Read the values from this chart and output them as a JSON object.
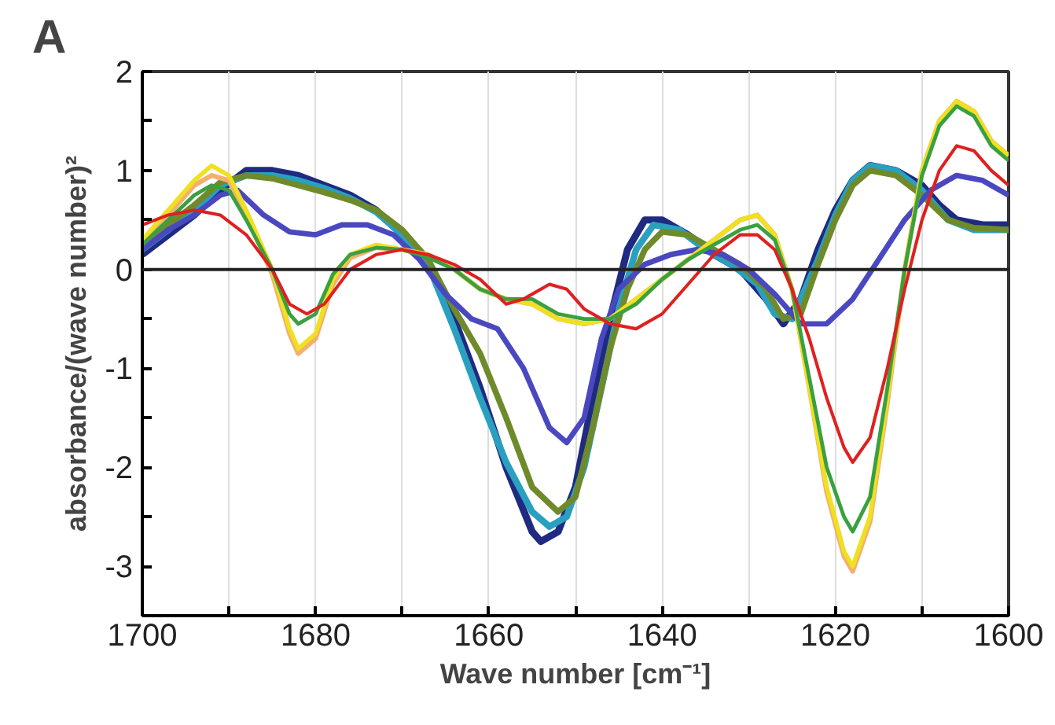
{
  "chart_data": {
    "type": "line",
    "title": "A",
    "xlabel": "Wave number [cm⁻¹]",
    "ylabel": "absorbance/(wave number)²",
    "xlim": [
      1700,
      1600
    ],
    "ylim": [
      -3.5,
      2
    ],
    "xticks": [
      1700,
      {
        "value": 1690,
        "label": null
      },
      1680,
      {
        "value": 1670,
        "label": null
      },
      1660,
      {
        "value": 1650,
        "label": null
      },
      1640,
      {
        "value": 1630,
        "label": null
      },
      1620,
      {
        "value": 1610,
        "label": null
      },
      1600
    ],
    "yticks": [
      {
        "value": -3.5,
        "label": null
      },
      -3,
      {
        "value": -2.5,
        "label": null
      },
      -2,
      {
        "value": -1.5,
        "label": null
      },
      -1,
      {
        "value": -0.5,
        "label": null
      },
      0,
      {
        "value": 0.5,
        "label": null
      },
      1,
      {
        "value": 1.5,
        "label": null
      },
      2
    ],
    "grid": "x",
    "marker": "none",
    "line_style": "solid",
    "ref_lines": [
      {
        "axis": "y",
        "value": 0,
        "label": null,
        "color": "#222222"
      }
    ],
    "series": [
      {
        "color": "#1f2a80",
        "x": [
          1700,
          1697,
          1694,
          1691,
          1688,
          1685,
          1682,
          1679,
          1676,
          1673,
          1670,
          1667,
          1664,
          1661,
          1658,
          1655,
          1654,
          1652,
          1650,
          1648,
          1646,
          1644,
          1642,
          1640,
          1637,
          1634,
          1631,
          1628,
          1626,
          1624,
          1622,
          1620,
          1618,
          1616,
          1613,
          1610,
          1608,
          1606,
          1603,
          1600
        ],
        "values": [
          0.15,
          0.35,
          0.55,
          0.8,
          1.0,
          1.0,
          0.95,
          0.85,
          0.75,
          0.6,
          0.35,
          0.05,
          -0.5,
          -1.2,
          -2.0,
          -2.65,
          -2.75,
          -2.65,
          -2.2,
          -1.3,
          -0.5,
          0.2,
          0.5,
          0.5,
          0.35,
          0.15,
          0.0,
          -0.3,
          -0.55,
          -0.3,
          0.2,
          0.6,
          0.9,
          1.05,
          1.0,
          0.85,
          0.65,
          0.5,
          0.45,
          0.45
        ]
      },
      {
        "color": "#2aa0c0",
        "x": [
          1700,
          1697,
          1694,
          1691,
          1688,
          1685,
          1682,
          1679,
          1676,
          1673,
          1670,
          1667,
          1664,
          1661,
          1658,
          1655,
          1653,
          1651,
          1649,
          1647,
          1645,
          1643,
          1641,
          1638,
          1635,
          1632,
          1629,
          1627,
          1625,
          1622,
          1620,
          1618,
          1616,
          1613,
          1610,
          1607,
          1604,
          1600
        ],
        "values": [
          0.2,
          0.4,
          0.6,
          0.85,
          0.95,
          0.95,
          0.9,
          0.82,
          0.72,
          0.58,
          0.35,
          0.05,
          -0.6,
          -1.3,
          -1.95,
          -2.45,
          -2.6,
          -2.5,
          -2.0,
          -1.2,
          -0.4,
          0.2,
          0.45,
          0.4,
          0.2,
          0.05,
          -0.15,
          -0.45,
          -0.5,
          0.1,
          0.55,
          0.9,
          1.05,
          1.0,
          0.8,
          0.5,
          0.4,
          0.4
        ]
      },
      {
        "color": "#6f8a2a",
        "x": [
          1700,
          1697,
          1694,
          1691,
          1688,
          1685,
          1682,
          1679,
          1676,
          1673,
          1670,
          1667,
          1664,
          1661,
          1658,
          1655,
          1652,
          1650,
          1648,
          1646,
          1644,
          1642,
          1640,
          1637,
          1634,
          1631,
          1628,
          1626,
          1624,
          1622,
          1620,
          1618,
          1616,
          1613,
          1610,
          1607,
          1604,
          1600
        ],
        "values": [
          0.25,
          0.45,
          0.65,
          0.88,
          0.95,
          0.92,
          0.85,
          0.78,
          0.7,
          0.6,
          0.4,
          0.1,
          -0.4,
          -0.85,
          -1.5,
          -2.2,
          -2.45,
          -2.3,
          -1.6,
          -0.8,
          -0.2,
          0.2,
          0.38,
          0.35,
          0.2,
          0.05,
          -0.2,
          -0.5,
          -0.45,
          0.05,
          0.5,
          0.85,
          1.0,
          0.95,
          0.75,
          0.5,
          0.42,
          0.4
        ]
      },
      {
        "color": "#4a48c0",
        "x": [
          1700,
          1697,
          1694,
          1691,
          1689,
          1686,
          1683,
          1680,
          1677,
          1674,
          1671,
          1668,
          1665,
          1662,
          1659,
          1656,
          1653,
          1651,
          1649,
          1647,
          1645,
          1642,
          1639,
          1636,
          1633,
          1630,
          1627,
          1624,
          1621,
          1618,
          1615,
          1612,
          1609,
          1606,
          1603,
          1600
        ],
        "values": [
          0.2,
          0.4,
          0.55,
          0.75,
          0.8,
          0.55,
          0.38,
          0.35,
          0.45,
          0.45,
          0.35,
          0.1,
          -0.25,
          -0.5,
          -0.6,
          -1.0,
          -1.6,
          -1.75,
          -1.5,
          -0.7,
          -0.2,
          0.05,
          0.15,
          0.2,
          0.15,
          0.0,
          -0.25,
          -0.55,
          -0.55,
          -0.3,
          0.1,
          0.5,
          0.8,
          0.95,
          0.9,
          0.75
        ]
      },
      {
        "color": "#f2b070",
        "x": [
          1700,
          1697,
          1694,
          1692,
          1690,
          1688,
          1685,
          1683,
          1682,
          1680,
          1678,
          1676,
          1673,
          1670,
          1667,
          1664,
          1661,
          1658,
          1655,
          1652,
          1649,
          1646,
          1643,
          1640,
          1637,
          1634,
          1631,
          1629,
          1627,
          1625,
          1623,
          1621,
          1619,
          1618,
          1616,
          1614,
          1612,
          1610,
          1608,
          1606,
          1604,
          1602,
          1600
        ],
        "values": [
          0.3,
          0.55,
          0.85,
          0.95,
          0.9,
          0.55,
          -0.05,
          -0.65,
          -0.85,
          -0.7,
          -0.15,
          0.12,
          0.22,
          0.2,
          0.15,
          0.0,
          -0.2,
          -0.3,
          -0.35,
          -0.5,
          -0.55,
          -0.5,
          -0.3,
          -0.1,
          0.1,
          0.3,
          0.5,
          0.55,
          0.35,
          -0.2,
          -1.2,
          -2.25,
          -2.9,
          -3.05,
          -2.55,
          -1.35,
          0.0,
          1.0,
          1.5,
          1.7,
          1.6,
          1.3,
          1.15
        ]
      },
      {
        "color": "#f0e020",
        "x": [
          1700,
          1697,
          1694,
          1692,
          1690,
          1688,
          1685,
          1683,
          1682,
          1680,
          1678,
          1676,
          1673,
          1670,
          1667,
          1664,
          1661,
          1658,
          1655,
          1652,
          1649,
          1646,
          1643,
          1640,
          1637,
          1634,
          1631,
          1629,
          1627,
          1625,
          1623,
          1621,
          1619,
          1618,
          1616,
          1614,
          1612,
          1610,
          1608,
          1606,
          1604,
          1602,
          1600
        ],
        "values": [
          0.3,
          0.6,
          0.9,
          1.05,
          0.95,
          0.6,
          0.0,
          -0.6,
          -0.8,
          -0.65,
          -0.1,
          0.15,
          0.25,
          0.2,
          0.15,
          0.0,
          -0.2,
          -0.3,
          -0.35,
          -0.5,
          -0.55,
          -0.5,
          -0.3,
          -0.1,
          0.1,
          0.3,
          0.5,
          0.55,
          0.35,
          -0.2,
          -1.2,
          -2.2,
          -2.85,
          -3.0,
          -2.5,
          -1.3,
          0.0,
          1.0,
          1.5,
          1.7,
          1.6,
          1.3,
          1.15
        ]
      },
      {
        "color": "#3aa040",
        "x": [
          1700,
          1697,
          1694,
          1692,
          1690,
          1688,
          1685,
          1683,
          1682,
          1680,
          1678,
          1676,
          1673,
          1670,
          1667,
          1664,
          1661,
          1658,
          1655,
          1652,
          1649,
          1646,
          1643,
          1640,
          1637,
          1634,
          1631,
          1629,
          1627,
          1625,
          1623,
          1621,
          1619,
          1618,
          1616,
          1614,
          1612,
          1610,
          1608,
          1606,
          1604,
          1602,
          1600
        ],
        "values": [
          0.25,
          0.5,
          0.75,
          0.85,
          0.8,
          0.5,
          0.0,
          -0.45,
          -0.55,
          -0.45,
          -0.05,
          0.15,
          0.22,
          0.2,
          0.12,
          0.0,
          -0.2,
          -0.3,
          -0.3,
          -0.45,
          -0.5,
          -0.5,
          -0.35,
          -0.1,
          0.1,
          0.25,
          0.4,
          0.45,
          0.3,
          -0.2,
          -1.1,
          -2.0,
          -2.5,
          -2.65,
          -2.3,
          -1.2,
          0.0,
          0.95,
          1.45,
          1.65,
          1.55,
          1.25,
          1.1
        ]
      },
      {
        "color": "#e02020",
        "x": [
          1700,
          1697,
          1694,
          1691,
          1688,
          1685,
          1683,
          1681,
          1679,
          1676,
          1673,
          1670,
          1667,
          1664,
          1661,
          1658,
          1656,
          1653,
          1651,
          1649,
          1646,
          1643,
          1640,
          1637,
          1634,
          1631,
          1629,
          1627,
          1625,
          1623,
          1621,
          1619,
          1618,
          1616,
          1614,
          1612,
          1610,
          1608,
          1606,
          1604,
          1602,
          1600
        ],
        "values": [
          0.45,
          0.55,
          0.6,
          0.55,
          0.35,
          0.0,
          -0.35,
          -0.45,
          -0.35,
          0.0,
          0.15,
          0.2,
          0.15,
          0.05,
          -0.1,
          -0.35,
          -0.3,
          -0.15,
          -0.2,
          -0.4,
          -0.55,
          -0.6,
          -0.45,
          -0.15,
          0.15,
          0.35,
          0.35,
          0.2,
          -0.2,
          -0.7,
          -1.3,
          -1.8,
          -1.95,
          -1.7,
          -1.0,
          -0.2,
          0.5,
          1.0,
          1.25,
          1.2,
          1.0,
          0.85
        ]
      }
    ]
  }
}
